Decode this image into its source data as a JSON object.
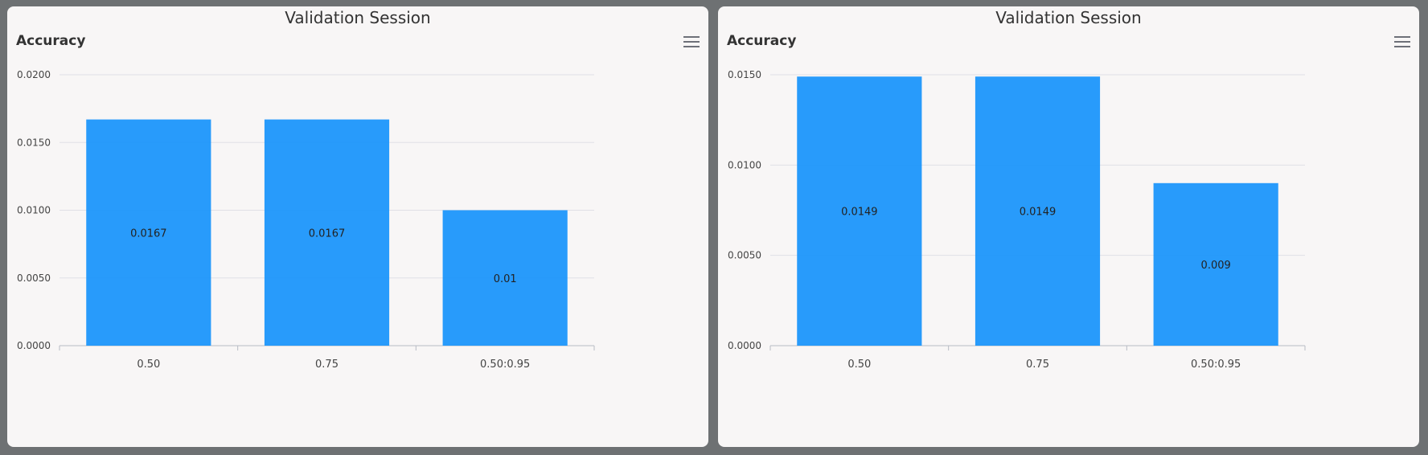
{
  "colors": {
    "bar": "#1c96fb",
    "grid": "#e0e0e6",
    "axis": "#b8bcc4",
    "tick_text": "#444444",
    "label_text": "#222222"
  },
  "menu_icon": "hamburger-menu-icon",
  "chart_data": [
    {
      "type": "bar",
      "window_title": "Validation Session",
      "title": "Accuracy",
      "categories": [
        "0.50",
        "0.75",
        "0.50:0.95"
      ],
      "values": [
        0.0167,
        0.0167,
        0.01
      ],
      "value_labels": [
        "0.0167",
        "0.0167",
        "0.01"
      ],
      "yticks": [
        "0.0000",
        "0.0050",
        "0.0100",
        "0.0150",
        "0.0200"
      ],
      "ylim": [
        0,
        0.02
      ],
      "xlabel": "",
      "ylabel": "",
      "grid": true
    },
    {
      "type": "bar",
      "window_title": "Validation Session",
      "title": "Accuracy",
      "categories": [
        "0.50",
        "0.75",
        "0.50:0.95"
      ],
      "values": [
        0.0149,
        0.0149,
        0.009
      ],
      "value_labels": [
        "0.0149",
        "0.0149",
        "0.009"
      ],
      "yticks": [
        "0.0000",
        "0.0050",
        "0.0100",
        "0.0150"
      ],
      "ylim": [
        0,
        0.015
      ],
      "xlabel": "",
      "ylabel": "",
      "grid": true
    }
  ]
}
